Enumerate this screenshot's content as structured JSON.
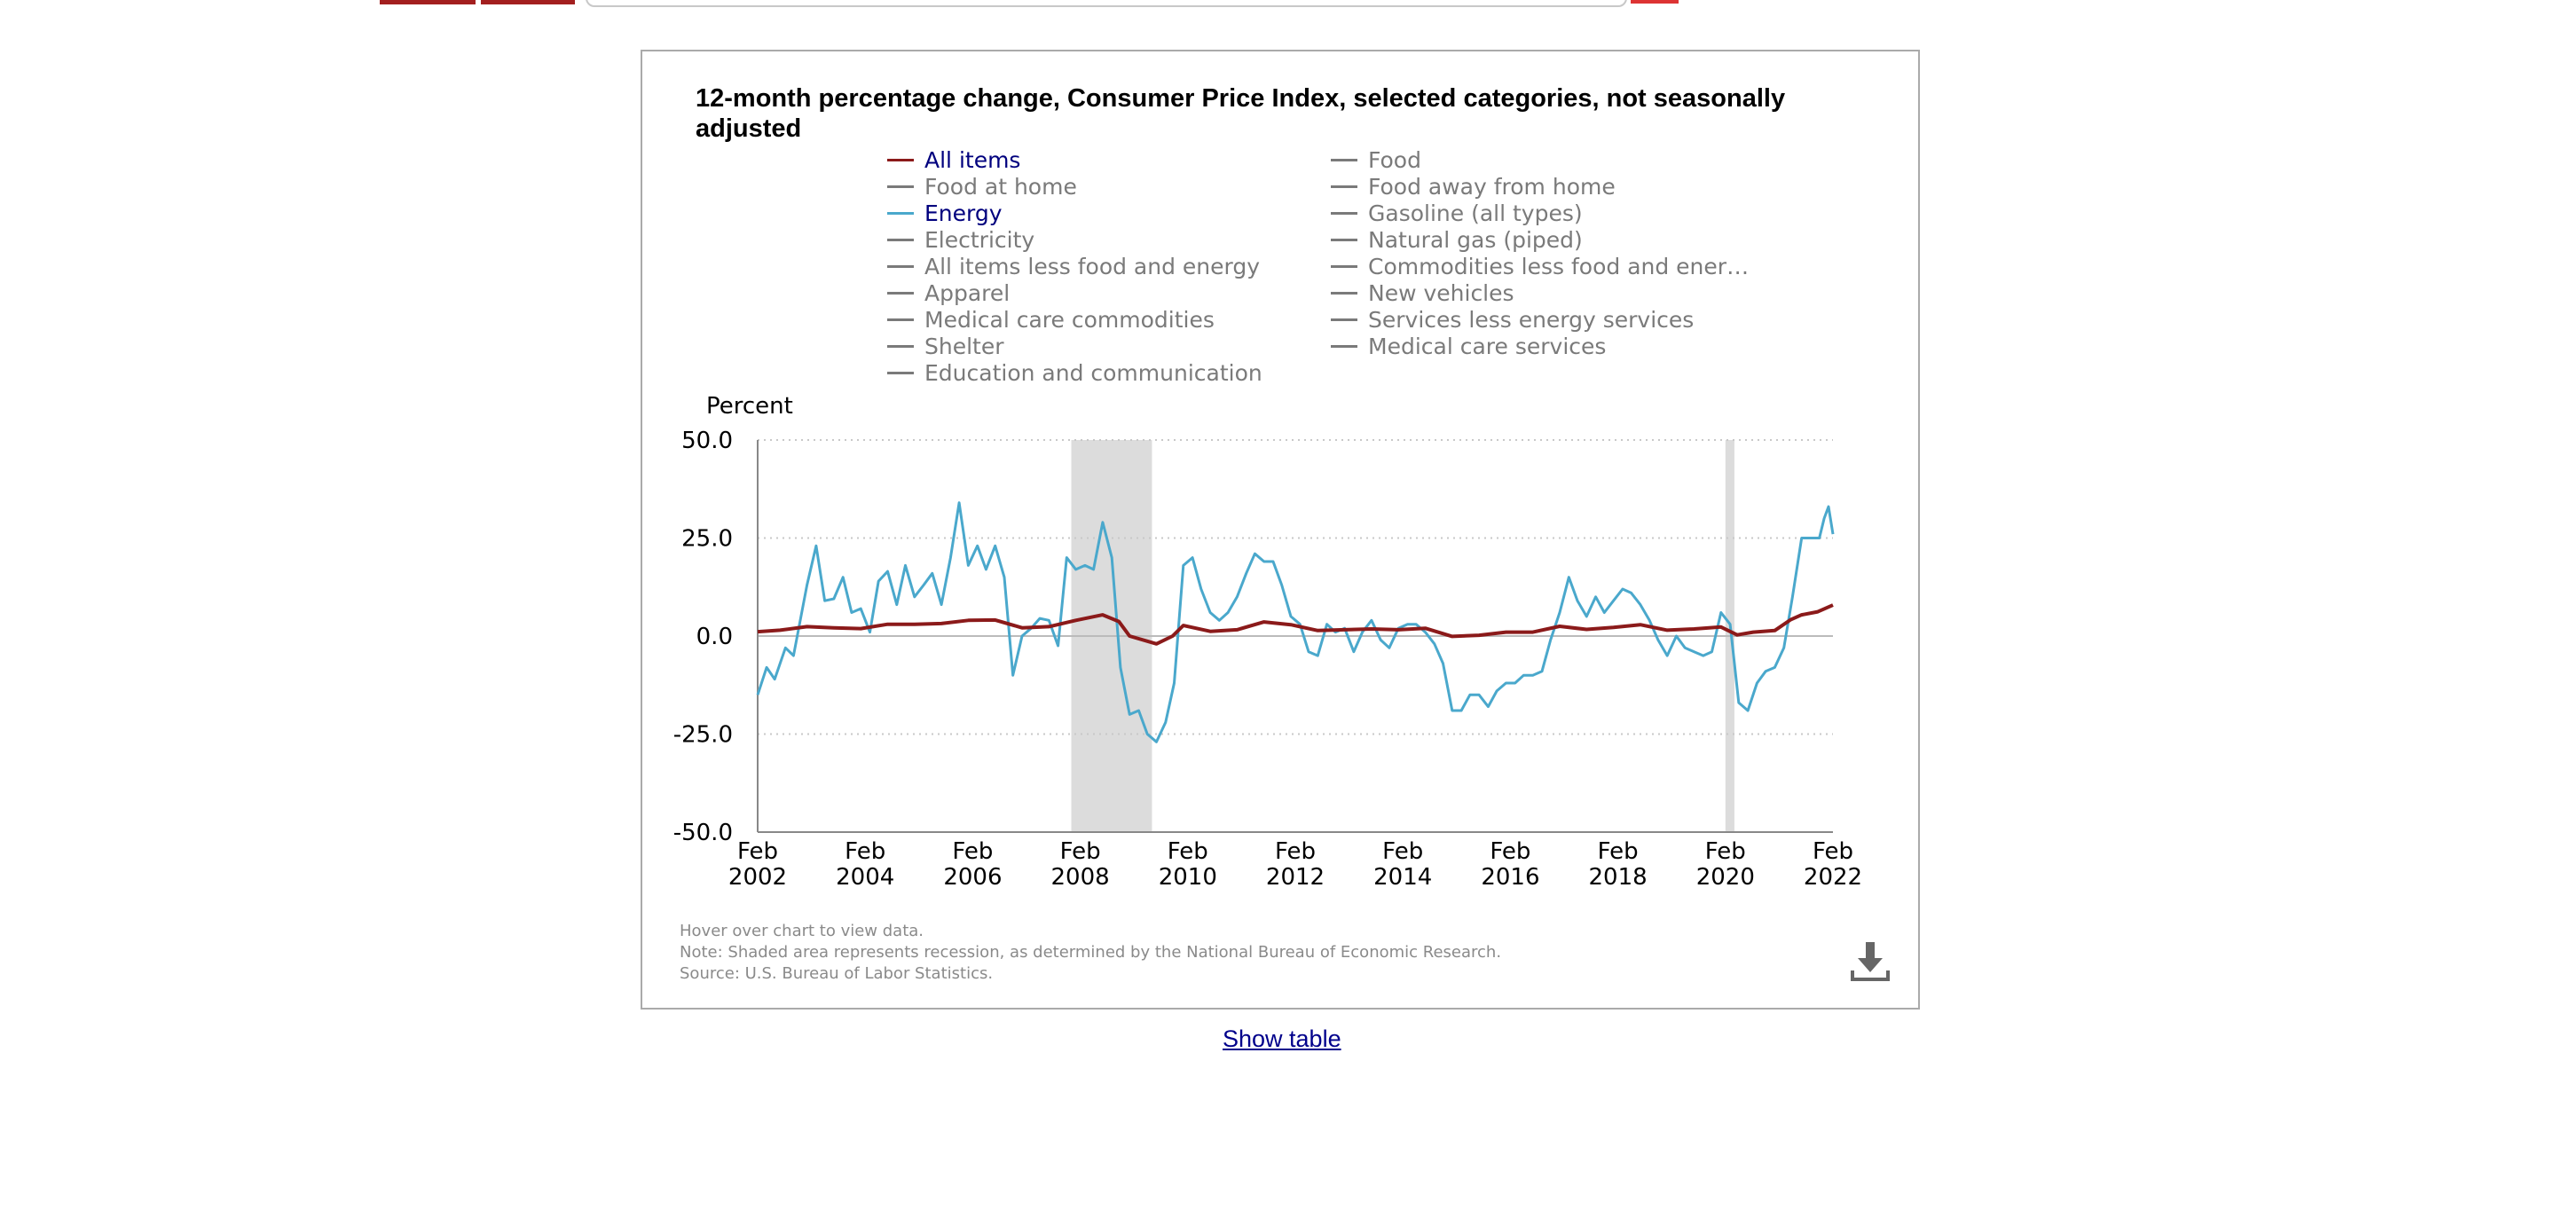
{
  "chart": {
    "title": "12-month percentage change, Consumer Price Index, selected categories, not seasonally adjusted",
    "notes": [
      "Hover over chart to view data.",
      "Note: Shaded area represents recession, as determined by the National Bureau of Economic Research.",
      "Source: U.S. Bureau of Labor Statistics."
    ],
    "show_table_label": "Show table",
    "icons": {
      "download": "download-icon"
    }
  },
  "legend": {
    "column1": [
      {
        "label": "All items",
        "color": "#8b1a1a",
        "active": true
      },
      {
        "label": "Food at home",
        "color": "#7a7a7a",
        "active": false
      },
      {
        "label": "Energy",
        "color": "#4aa8cc",
        "active": true
      },
      {
        "label": "Electricity",
        "color": "#7a7a7a",
        "active": false
      },
      {
        "label": "All items less food and energy",
        "color": "#7a7a7a",
        "active": false
      },
      {
        "label": "Apparel",
        "color": "#7a7a7a",
        "active": false
      },
      {
        "label": "Medical care commodities",
        "color": "#7a7a7a",
        "active": false
      },
      {
        "label": "Shelter",
        "color": "#7a7a7a",
        "active": false
      },
      {
        "label": "Education and communication",
        "color": "#7a7a7a",
        "active": false
      }
    ],
    "column2": [
      {
        "label": "Food",
        "color": "#7a7a7a",
        "active": false
      },
      {
        "label": "Food away from home",
        "color": "#7a7a7a",
        "active": false
      },
      {
        "label": "Gasoline (all types)",
        "color": "#7a7a7a",
        "active": false
      },
      {
        "label": "Natural gas (piped)",
        "color": "#7a7a7a",
        "active": false
      },
      {
        "label": "Commodities less food and ener…",
        "color": "#7a7a7a",
        "active": false
      },
      {
        "label": "New vehicles",
        "color": "#7a7a7a",
        "active": false
      },
      {
        "label": "Services less energy services",
        "color": "#7a7a7a",
        "active": false
      },
      {
        "label": "Medical care services",
        "color": "#7a7a7a",
        "active": false
      }
    ]
  },
  "chart_data": {
    "type": "line",
    "title": "12-month percentage change, Consumer Price Index, selected categories, not seasonally adjusted",
    "xlabel": "",
    "ylabel": "Percent",
    "ylim": [
      -50,
      50
    ],
    "xlim": [
      2002.083,
      2022.083
    ],
    "yticks": [
      "50.0",
      "25.0",
      "0.0",
      "-25.0",
      "-50.0"
    ],
    "ytick_values": [
      50,
      25,
      0,
      -25,
      -50
    ],
    "xticks": [
      {
        "month": "Feb",
        "year": "2002",
        "x": 2002.083
      },
      {
        "month": "Feb",
        "year": "2004",
        "x": 2004.083
      },
      {
        "month": "Feb",
        "year": "2006",
        "x": 2006.083
      },
      {
        "month": "Feb",
        "year": "2008",
        "x": 2008.083
      },
      {
        "month": "Feb",
        "year": "2010",
        "x": 2010.083
      },
      {
        "month": "Feb",
        "year": "2012",
        "x": 2012.083
      },
      {
        "month": "Feb",
        "year": "2014",
        "x": 2014.083
      },
      {
        "month": "Feb",
        "year": "2016",
        "x": 2016.083
      },
      {
        "month": "Feb",
        "year": "2018",
        "x": 2018.083
      },
      {
        "month": "Feb",
        "year": "2020",
        "x": 2020.083
      },
      {
        "month": "Feb",
        "year": "2022",
        "x": 2022.083
      }
    ],
    "grid": true,
    "recessions": [
      [
        2007.917,
        2009.417
      ],
      [
        2020.083,
        2020.25
      ]
    ],
    "recession_color": "#dcdcdc",
    "series": [
      {
        "name": "All items",
        "color": "#8b1a1a",
        "points": [
          [
            2002.083,
            1.1
          ],
          [
            2002.5,
            1.5
          ],
          [
            2003.0,
            2.4
          ],
          [
            2003.5,
            2.1
          ],
          [
            2004.0,
            1.9
          ],
          [
            2004.5,
            3.0
          ],
          [
            2005.0,
            3.0
          ],
          [
            2005.5,
            3.2
          ],
          [
            2006.0,
            4.0
          ],
          [
            2006.5,
            4.1
          ],
          [
            2007.0,
            2.1
          ],
          [
            2007.5,
            2.4
          ],
          [
            2008.0,
            4.0
          ],
          [
            2008.5,
            5.4
          ],
          [
            2008.8,
            3.7
          ],
          [
            2009.0,
            0.0
          ],
          [
            2009.5,
            -2.0
          ],
          [
            2009.8,
            0.0
          ],
          [
            2010.0,
            2.7
          ],
          [
            2010.5,
            1.2
          ],
          [
            2011.0,
            1.6
          ],
          [
            2011.5,
            3.6
          ],
          [
            2012.0,
            2.9
          ],
          [
            2012.5,
            1.4
          ],
          [
            2013.0,
            1.6
          ],
          [
            2013.5,
            1.8
          ],
          [
            2014.0,
            1.6
          ],
          [
            2014.5,
            2.0
          ],
          [
            2015.0,
            -0.1
          ],
          [
            2015.5,
            0.2
          ],
          [
            2016.0,
            1.0
          ],
          [
            2016.5,
            1.0
          ],
          [
            2017.0,
            2.5
          ],
          [
            2017.5,
            1.7
          ],
          [
            2018.0,
            2.2
          ],
          [
            2018.5,
            2.9
          ],
          [
            2019.0,
            1.5
          ],
          [
            2019.5,
            1.8
          ],
          [
            2020.0,
            2.3
          ],
          [
            2020.3,
            0.3
          ],
          [
            2020.6,
            1.0
          ],
          [
            2021.0,
            1.4
          ],
          [
            2021.3,
            4.2
          ],
          [
            2021.5,
            5.4
          ],
          [
            2021.8,
            6.2
          ],
          [
            2022.083,
            7.9
          ]
        ]
      },
      {
        "name": "Energy",
        "color": "#4aa8cc",
        "points": [
          [
            2002.083,
            -15.0
          ],
          [
            2002.25,
            -8.0
          ],
          [
            2002.4,
            -11.0
          ],
          [
            2002.6,
            -3.0
          ],
          [
            2002.75,
            -5.0
          ],
          [
            2003.0,
            13.0
          ],
          [
            2003.17,
            23.0
          ],
          [
            2003.33,
            9.0
          ],
          [
            2003.5,
            9.5
          ],
          [
            2003.67,
            15.0
          ],
          [
            2003.83,
            6.0
          ],
          [
            2004.0,
            7.0
          ],
          [
            2004.17,
            1.0
          ],
          [
            2004.33,
            14.0
          ],
          [
            2004.5,
            16.5
          ],
          [
            2004.67,
            8.0
          ],
          [
            2004.83,
            18.0
          ],
          [
            2005.0,
            10.0
          ],
          [
            2005.17,
            13.0
          ],
          [
            2005.33,
            16.0
          ],
          [
            2005.5,
            8.0
          ],
          [
            2005.67,
            20.0
          ],
          [
            2005.83,
            34.0
          ],
          [
            2006.0,
            18.0
          ],
          [
            2006.17,
            23.0
          ],
          [
            2006.33,
            17.0
          ],
          [
            2006.5,
            23.0
          ],
          [
            2006.67,
            15.0
          ],
          [
            2006.83,
            -10.0
          ],
          [
            2007.0,
            0.0
          ],
          [
            2007.17,
            2.0
          ],
          [
            2007.33,
            4.5
          ],
          [
            2007.5,
            4.0
          ],
          [
            2007.67,
            -2.5
          ],
          [
            2007.83,
            20.0
          ],
          [
            2008.0,
            17.0
          ],
          [
            2008.17,
            18.0
          ],
          [
            2008.33,
            17.0
          ],
          [
            2008.5,
            29.0
          ],
          [
            2008.67,
            20.0
          ],
          [
            2008.83,
            -8.0
          ],
          [
            2009.0,
            -20.0
          ],
          [
            2009.17,
            -19.0
          ],
          [
            2009.33,
            -25.0
          ],
          [
            2009.5,
            -27.0
          ],
          [
            2009.67,
            -22.0
          ],
          [
            2009.83,
            -12.0
          ],
          [
            2010.0,
            18.0
          ],
          [
            2010.17,
            20.0
          ],
          [
            2010.33,
            12.0
          ],
          [
            2010.5,
            6.0
          ],
          [
            2010.67,
            4.0
          ],
          [
            2010.83,
            6.0
          ],
          [
            2011.0,
            10.0
          ],
          [
            2011.17,
            16.0
          ],
          [
            2011.33,
            21.0
          ],
          [
            2011.5,
            19.0
          ],
          [
            2011.67,
            19.0
          ],
          [
            2011.83,
            13.0
          ],
          [
            2012.0,
            5.0
          ],
          [
            2012.17,
            3.0
          ],
          [
            2012.33,
            -4.0
          ],
          [
            2012.5,
            -5.0
          ],
          [
            2012.67,
            3.0
          ],
          [
            2012.83,
            1.0
          ],
          [
            2013.0,
            2.0
          ],
          [
            2013.17,
            -4.0
          ],
          [
            2013.33,
            1.0
          ],
          [
            2013.5,
            4.0
          ],
          [
            2013.67,
            -1.0
          ],
          [
            2013.83,
            -3.0
          ],
          [
            2014.0,
            2.0
          ],
          [
            2014.17,
            3.0
          ],
          [
            2014.33,
            3.0
          ],
          [
            2014.5,
            1.0
          ],
          [
            2014.67,
            -2.0
          ],
          [
            2014.83,
            -7.0
          ],
          [
            2015.0,
            -19.0
          ],
          [
            2015.17,
            -19.0
          ],
          [
            2015.33,
            -15.0
          ],
          [
            2015.5,
            -15.0
          ],
          [
            2015.67,
            -18.0
          ],
          [
            2015.83,
            -14.0
          ],
          [
            2016.0,
            -12.0
          ],
          [
            2016.17,
            -12.0
          ],
          [
            2016.33,
            -10.0
          ],
          [
            2016.5,
            -10.0
          ],
          [
            2016.67,
            -9.0
          ],
          [
            2016.83,
            -1.0
          ],
          [
            2017.0,
            6.0
          ],
          [
            2017.17,
            15.0
          ],
          [
            2017.33,
            9.0
          ],
          [
            2017.5,
            5.0
          ],
          [
            2017.67,
            10.0
          ],
          [
            2017.83,
            6.0
          ],
          [
            2018.0,
            9.0
          ],
          [
            2018.17,
            12.0
          ],
          [
            2018.33,
            11.0
          ],
          [
            2018.5,
            8.0
          ],
          [
            2018.67,
            4.0
          ],
          [
            2018.83,
            -1.0
          ],
          [
            2019.0,
            -5.0
          ],
          [
            2019.17,
            0.0
          ],
          [
            2019.33,
            -3.0
          ],
          [
            2019.5,
            -4.0
          ],
          [
            2019.67,
            -5.0
          ],
          [
            2019.83,
            -4.0
          ],
          [
            2020.0,
            6.0
          ],
          [
            2020.17,
            3.0
          ],
          [
            2020.33,
            -17.0
          ],
          [
            2020.5,
            -19.0
          ],
          [
            2020.67,
            -12.0
          ],
          [
            2020.83,
            -9.0
          ],
          [
            2021.0,
            -8.0
          ],
          [
            2021.17,
            -3.0
          ],
          [
            2021.33,
            10.0
          ],
          [
            2021.5,
            25.0
          ],
          [
            2021.67,
            25.0
          ],
          [
            2021.83,
            25.0
          ],
          [
            2021.92,
            30.0
          ],
          [
            2022.0,
            33.0
          ],
          [
            2022.083,
            26.0
          ]
        ]
      }
    ]
  }
}
